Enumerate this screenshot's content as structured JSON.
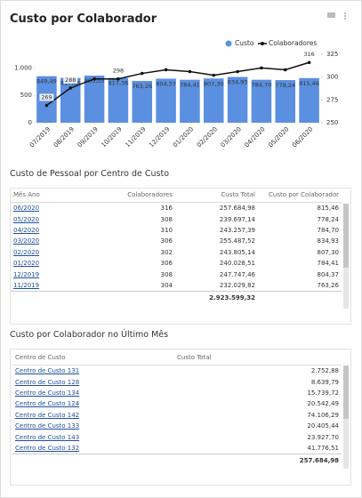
{
  "title": "Custo por Colaborador",
  "chart_data": {
    "type": "bar-line",
    "categories": [
      "07/2019",
      "08/2019",
      "09/2019",
      "10/2019",
      "11/2019",
      "12/2019",
      "01/2020",
      "02/2020",
      "03/2020",
      "04/2020",
      "05/2020",
      "06/2020"
    ],
    "series": [
      {
        "name": "Custo",
        "color": "#5b8fe0",
        "type": "bar",
        "values": [
          849.49,
          817.66,
          860.03,
          817.36,
          763.26,
          804.37,
          784.41,
          807.3,
          834.93,
          784.7,
          778.24,
          815.46
        ],
        "value_labels": [
          "849,49",
          "817,66",
          "860,03",
          "817,36",
          "763,26",
          "804,37",
          "784,41",
          "807,30",
          "834,93",
          "784,70",
          "778,24",
          "815,46"
        ]
      },
      {
        "name": "Colaboradores",
        "color": "#111111",
        "type": "line",
        "axis": "y2",
        "values": [
          269,
          288,
          298,
          298,
          304,
          308,
          306,
          302,
          306,
          310,
          308,
          316
        ],
        "value_labels": [
          "269",
          "288",
          null,
          "298",
          null,
          null,
          null,
          null,
          null,
          null,
          null,
          "316"
        ]
      }
    ],
    "ylim": [
      0,
      1250
    ],
    "yticks": [
      0,
      500,
      {
        "value": 1000,
        "label": "1.000"
      }
    ],
    "y2lim": [
      250,
      325
    ],
    "y2ticks": [
      250,
      275,
      300,
      325
    ],
    "legend": "top-right"
  },
  "table1": {
    "title": "Custo de Pessoal por Centro de Custo",
    "columns": [
      "Mês Ano",
      "Colaboradores",
      "Custo Total",
      "Custo por Colaborador"
    ],
    "rows": [
      [
        "06/2020",
        "316",
        "257.684,98",
        "815,46"
      ],
      [
        "05/2020",
        "308",
        "239.697,14",
        "778,24"
      ],
      [
        "04/2020",
        "310",
        "243.257,39",
        "784,70"
      ],
      [
        "03/2020",
        "306",
        "255.487,52",
        "834,93"
      ],
      [
        "02/2020",
        "302",
        "243.805,14",
        "807,30"
      ],
      [
        "01/2020",
        "306",
        "240.028,51",
        "784,41"
      ],
      [
        "12/2019",
        "308",
        "247.747,46",
        "804,37"
      ],
      [
        "11/2019",
        "304",
        "232.029,82",
        "763,26"
      ]
    ],
    "total": "2.923.599,32"
  },
  "table2": {
    "title": "Custo por Colaborador no Último Mês",
    "columns": [
      "Centro de Custo",
      "Custo Total"
    ],
    "rows": [
      [
        "Centro de Custo 131",
        "2.752,88"
      ],
      [
        "Centro de Custo 128",
        "8.639,79"
      ],
      [
        "Centro de Custo 134",
        "15.739,72"
      ],
      [
        "Centro de Custo 124",
        "20.542,49"
      ],
      [
        "Centro de Custo 142",
        "74.106,29"
      ],
      [
        "Centro de Custo 133",
        "20.405,44"
      ],
      [
        "Centro de Custo 143",
        "23.927,70"
      ],
      [
        "Centro de Custo 132",
        "41.776,51"
      ]
    ],
    "total": "257.684,98"
  }
}
